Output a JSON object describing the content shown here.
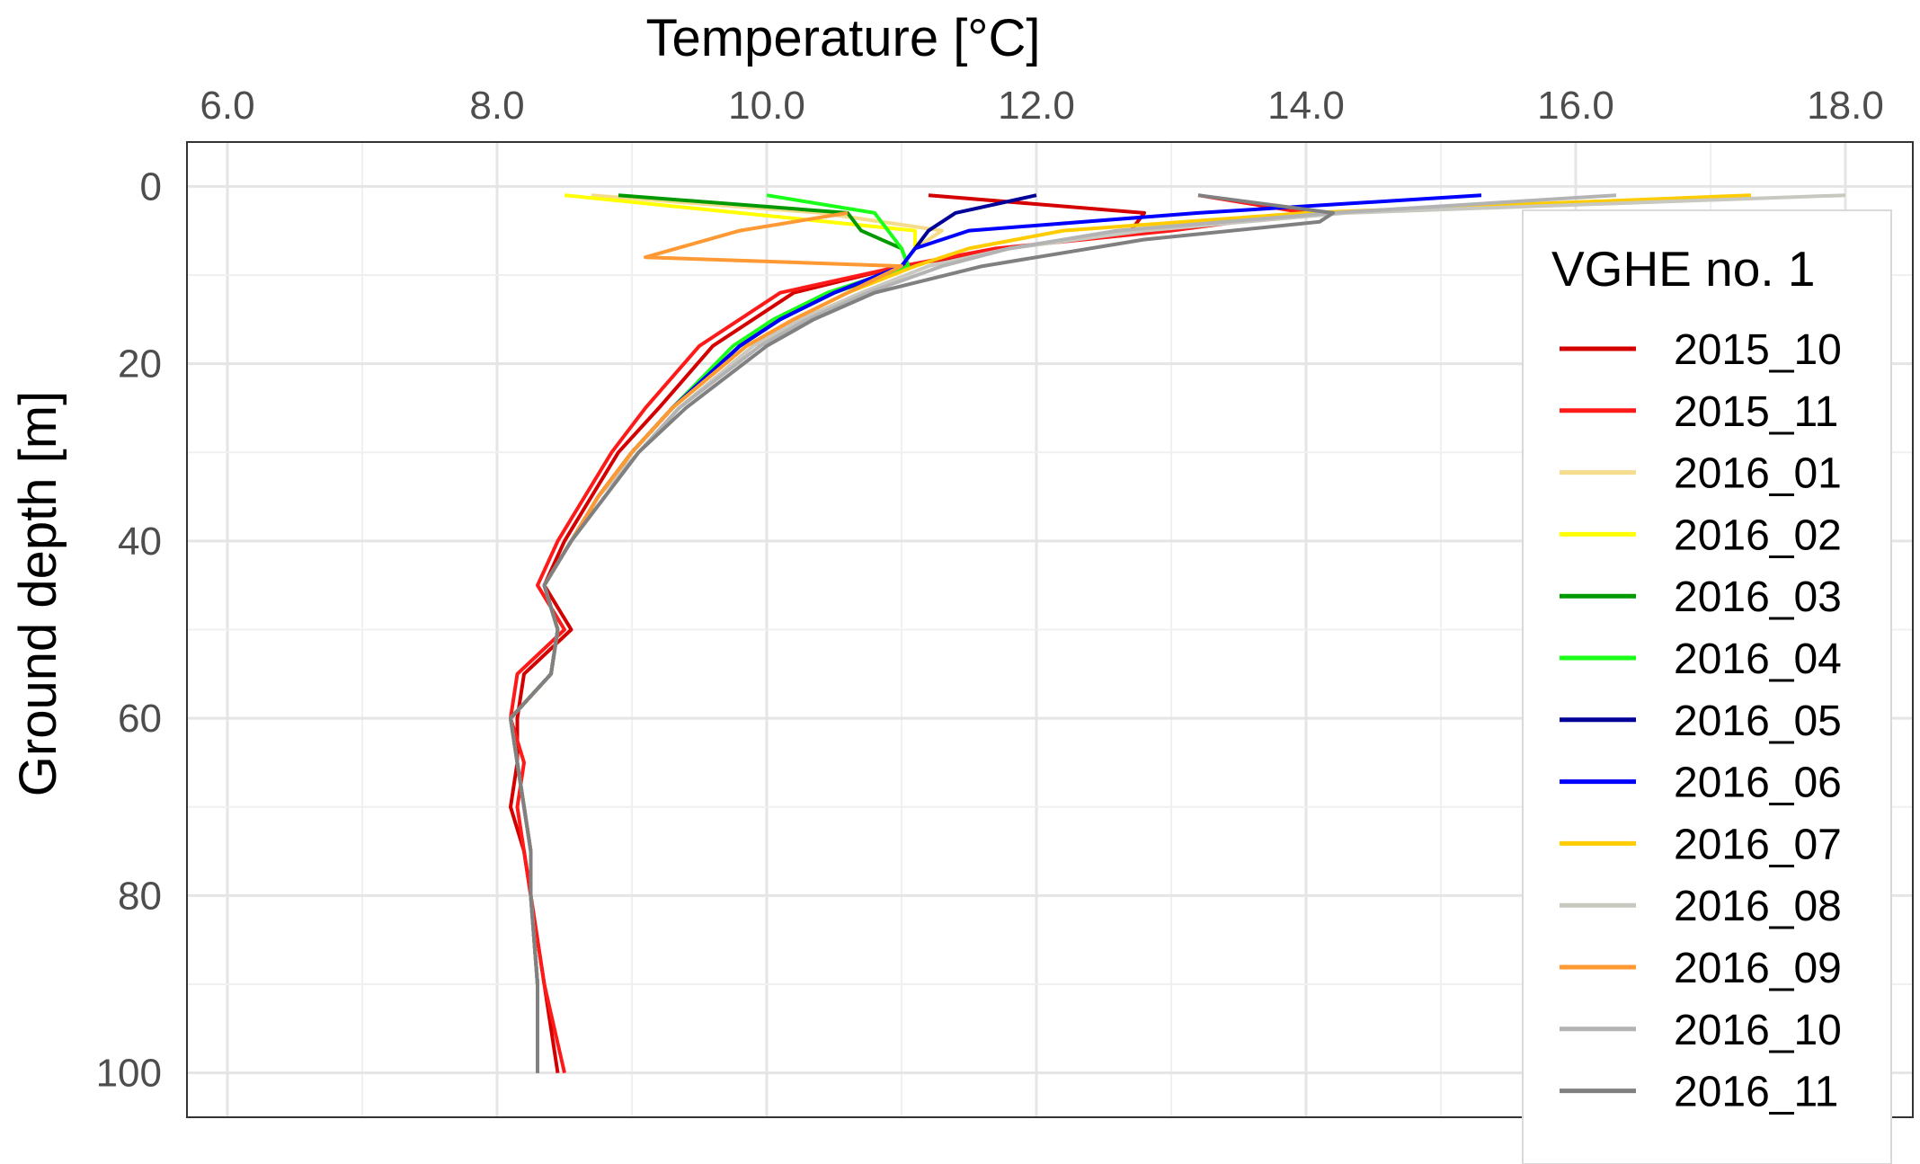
{
  "chart_data": {
    "type": "line",
    "title": "",
    "xlabel": "Temperature [°C]",
    "ylabel": "Ground depth [m]",
    "xlim": [
      5.7,
      18.5
    ],
    "ylim": [
      -5,
      105
    ],
    "x_ticks": [
      "6.0",
      "8.0",
      "10.0",
      "12.0",
      "14.0",
      "16.0",
      "18.0"
    ],
    "x_tick_values": [
      6,
      8,
      10,
      12,
      14,
      16,
      18
    ],
    "y_ticks": [
      "0",
      "20",
      "40",
      "60",
      "80",
      "100"
    ],
    "y_tick_values": [
      0,
      20,
      40,
      60,
      80,
      100
    ],
    "x_axis_position": "top",
    "y_axis_reversed": true,
    "grid": true,
    "legend": {
      "title": "VGHE no. 1",
      "position": "right"
    },
    "series": [
      {
        "name": "2015_10",
        "color": "#d40000",
        "depth": [
          1,
          3,
          5,
          7,
          9,
          12,
          15,
          18,
          25,
          30,
          35,
          40,
          45,
          50,
          55,
          60,
          65,
          70,
          75,
          80,
          90,
          100
        ],
        "temp": [
          11.2,
          12.8,
          12.7,
          11.8,
          11.0,
          10.2,
          9.9,
          9.6,
          9.2,
          8.9,
          8.7,
          8.5,
          8.35,
          8.55,
          8.2,
          8.15,
          8.15,
          8.1,
          8.2,
          8.25,
          8.35,
          8.45
        ]
      },
      {
        "name": "2015_11",
        "color": "#ff1a1a",
        "depth": [
          1,
          3,
          5,
          7,
          9,
          12,
          15,
          18,
          25,
          30,
          35,
          40,
          45,
          50,
          55,
          60,
          65,
          70,
          75,
          80,
          90,
          100
        ],
        "temp": [
          13.2,
          14.0,
          13.0,
          11.7,
          11.0,
          10.1,
          9.8,
          9.5,
          9.1,
          8.85,
          8.65,
          8.45,
          8.3,
          8.5,
          8.15,
          8.1,
          8.2,
          8.15,
          8.2,
          8.25,
          8.35,
          8.5
        ]
      },
      {
        "name": "2016_01",
        "color": "#f5dc8c",
        "depth": [
          1,
          3,
          5,
          7,
          9,
          12,
          15,
          18,
          25,
          30,
          35,
          40,
          45,
          50,
          55,
          60,
          65,
          70,
          75,
          80,
          90,
          100
        ],
        "temp": [
          8.7,
          10.4,
          11.3,
          11.1,
          11.0,
          10.5,
          10.1,
          9.8,
          9.3,
          9.0,
          8.75,
          8.55,
          8.35,
          8.45,
          8.4,
          8.1,
          8.15,
          8.2,
          8.25,
          8.25,
          8.3,
          8.3
        ]
      },
      {
        "name": "2016_02",
        "color": "#ffff00",
        "depth": [
          1,
          3,
          5,
          7,
          9,
          12,
          15,
          18,
          25,
          30,
          35,
          40,
          45,
          50,
          55,
          60,
          65,
          70,
          75,
          80,
          90,
          100
        ],
        "temp": [
          8.5,
          9.8,
          11.1,
          11.1,
          11.0,
          10.5,
          10.1,
          9.8,
          9.3,
          9.0,
          8.75,
          8.55,
          8.35,
          8.45,
          8.4,
          8.1,
          8.15,
          8.2,
          8.25,
          8.25,
          8.3,
          8.3
        ]
      },
      {
        "name": "2016_03",
        "color": "#009900",
        "depth": [
          1,
          3,
          5,
          7,
          9,
          12,
          15,
          18,
          25,
          30,
          35,
          40,
          45,
          50,
          55,
          60,
          65,
          70,
          75,
          80,
          90,
          100
        ],
        "temp": [
          8.9,
          10.6,
          10.7,
          11.0,
          11.05,
          10.5,
          10.1,
          9.8,
          9.3,
          9.0,
          8.75,
          8.55,
          8.35,
          8.45,
          8.4,
          8.1,
          8.15,
          8.2,
          8.25,
          8.25,
          8.3,
          8.3
        ]
      },
      {
        "name": "2016_04",
        "color": "#1aff1a",
        "depth": [
          1,
          3,
          5,
          7,
          9,
          12,
          15,
          18,
          25,
          30,
          35,
          40,
          45,
          50,
          55,
          60,
          65,
          70,
          75,
          80,
          90,
          100
        ],
        "temp": [
          10.0,
          10.8,
          10.9,
          11.0,
          11.05,
          10.45,
          10.05,
          9.75,
          9.3,
          9.0,
          8.75,
          8.55,
          8.35,
          8.45,
          8.4,
          8.1,
          8.15,
          8.2,
          8.25,
          8.25,
          8.3,
          8.3
        ]
      },
      {
        "name": "2016_05",
        "color": "#000099",
        "depth": [
          1,
          3,
          5,
          7,
          9,
          12,
          15,
          18,
          25,
          30,
          35,
          40,
          45,
          50,
          55,
          60,
          65,
          70,
          75,
          80,
          90,
          100
        ],
        "temp": [
          12.0,
          11.4,
          11.2,
          11.1,
          11.0,
          10.5,
          10.1,
          9.8,
          9.3,
          9.0,
          8.75,
          8.55,
          8.35,
          8.45,
          8.4,
          8.1,
          8.15,
          8.2,
          8.25,
          8.25,
          8.3,
          8.3
        ]
      },
      {
        "name": "2016_06",
        "color": "#0000ff",
        "depth": [
          1,
          3,
          5,
          7,
          9,
          12,
          15,
          18,
          25,
          30,
          35,
          40,
          45,
          50,
          55,
          60,
          65,
          70,
          75,
          80,
          90,
          100
        ],
        "temp": [
          15.3,
          13.2,
          11.5,
          11.1,
          11.0,
          10.5,
          10.1,
          9.8,
          9.3,
          9.0,
          8.75,
          8.55,
          8.35,
          8.45,
          8.4,
          8.1,
          8.15,
          8.2,
          8.25,
          8.25,
          8.3,
          8.3
        ]
      },
      {
        "name": "2016_07",
        "color": "#ffcc00",
        "depth": [
          1,
          3,
          5,
          7,
          9,
          12,
          15,
          18,
          25,
          30,
          35,
          40,
          45,
          50,
          55,
          60,
          65,
          70,
          75,
          80,
          90,
          100
        ],
        "temp": [
          17.3,
          14.0,
          12.2,
          11.5,
          11.1,
          10.6,
          10.2,
          9.85,
          9.3,
          9.0,
          8.75,
          8.55,
          8.35,
          8.45,
          8.4,
          8.1,
          8.15,
          8.2,
          8.25,
          8.25,
          8.3,
          8.3
        ]
      },
      {
        "name": "2016_08",
        "color": "#c8c8c0",
        "depth": [
          1,
          3,
          5,
          7,
          9,
          12,
          15,
          18,
          25,
          30,
          35,
          40,
          45,
          50,
          55,
          60,
          65,
          70,
          75,
          80,
          90,
          100
        ],
        "temp": [
          18.0,
          14.3,
          12.8,
          11.8,
          11.2,
          10.7,
          10.25,
          9.9,
          9.35,
          9.05,
          8.75,
          8.55,
          8.35,
          8.45,
          8.4,
          8.1,
          8.15,
          8.2,
          8.25,
          8.25,
          8.3,
          8.3
        ]
      },
      {
        "name": "2016_09",
        "color": "#ff9933",
        "depth": [
          3,
          5,
          8,
          9,
          12,
          15,
          18,
          25,
          30,
          35,
          40,
          45,
          50,
          55,
          60,
          65,
          70,
          75,
          80,
          90,
          100
        ],
        "temp": [
          10.6,
          9.8,
          9.1,
          11.0,
          10.6,
          10.2,
          9.85,
          9.3,
          9.0,
          8.75,
          8.55,
          8.35,
          8.45,
          8.4,
          8.1,
          8.15,
          8.2,
          8.25,
          8.25,
          8.3,
          8.3
        ]
      },
      {
        "name": "2016_10",
        "color": "#b3b3b3",
        "depth": [
          1,
          3,
          5,
          7,
          9,
          12,
          15,
          18,
          25,
          30,
          35,
          40,
          45,
          50,
          55,
          60,
          65,
          70,
          75,
          80,
          90,
          100
        ],
        "temp": [
          16.3,
          14.2,
          12.6,
          11.8,
          11.3,
          10.75,
          10.3,
          9.95,
          9.35,
          9.05,
          8.8,
          8.55,
          8.35,
          8.45,
          8.4,
          8.1,
          8.15,
          8.2,
          8.25,
          8.25,
          8.3,
          8.3
        ]
      },
      {
        "name": "2016_11",
        "color": "#808080",
        "depth": [
          1,
          3,
          4,
          6,
          9,
          12,
          15,
          18,
          25,
          30,
          35,
          40,
          45,
          50,
          55,
          60,
          65,
          70,
          75,
          80,
          90,
          100
        ],
        "temp": [
          13.2,
          14.2,
          14.1,
          12.8,
          11.6,
          10.8,
          10.35,
          10.0,
          9.4,
          9.05,
          8.8,
          8.55,
          8.35,
          8.45,
          8.4,
          8.1,
          8.15,
          8.2,
          8.25,
          8.25,
          8.3,
          8.3
        ]
      }
    ]
  }
}
